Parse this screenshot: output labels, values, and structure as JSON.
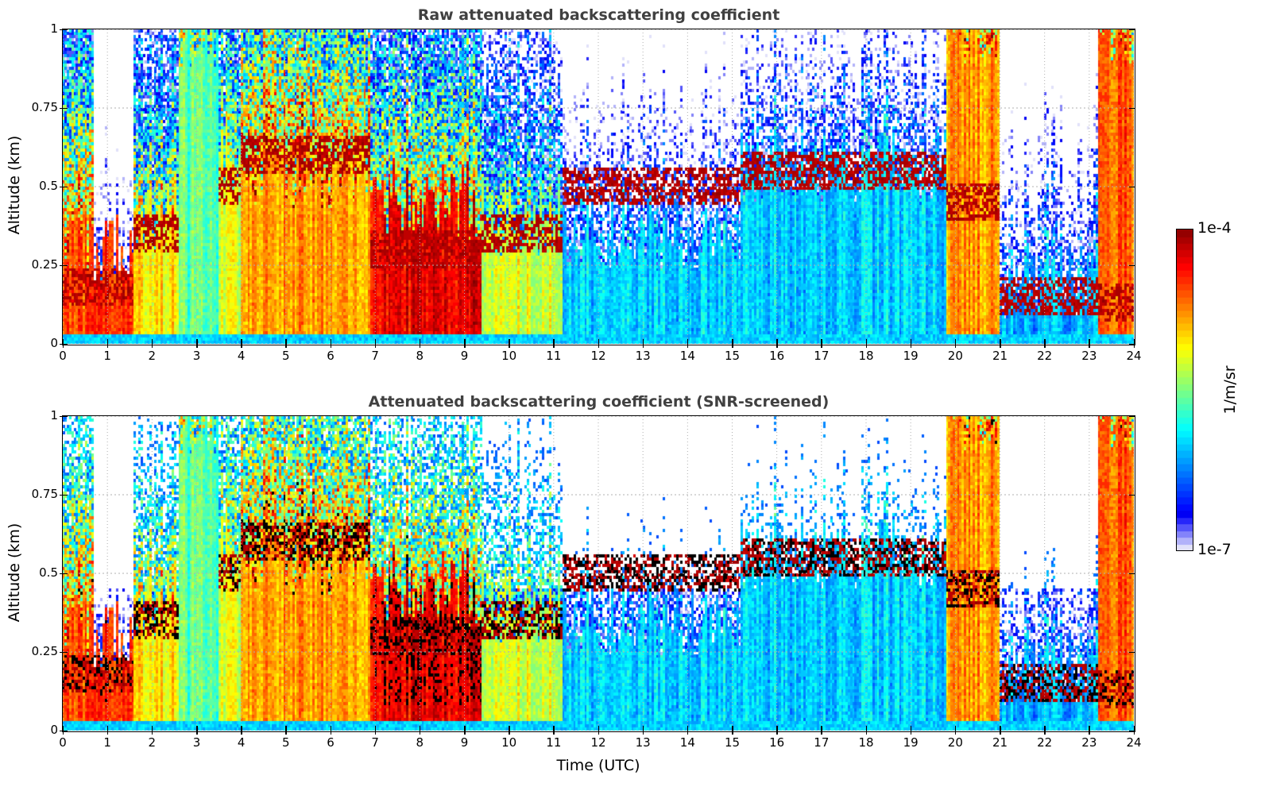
{
  "chart_data": [
    {
      "type": "heatmap",
      "title": "Raw attenuated backscattering coefficient",
      "xlabel": "",
      "ylabel": "Altitude (km)",
      "xlim": [
        0,
        24
      ],
      "ylim": [
        0,
        1
      ],
      "x_ticks": [
        "0",
        "1",
        "2",
        "3",
        "4",
        "5",
        "6",
        "7",
        "8",
        "9",
        "10",
        "11",
        "12",
        "13",
        "14",
        "15",
        "16",
        "17",
        "18",
        "19",
        "20",
        "21",
        "22",
        "23",
        "24"
      ],
      "y_ticks": [
        "0",
        "0.25",
        "0.5",
        "0.75",
        "1"
      ],
      "grid": true,
      "screened": false
    },
    {
      "type": "heatmap",
      "title": "Attenuated backscattering coefficient (SNR-screened)",
      "xlabel": "Time (UTC)",
      "ylabel": "Altitude (km)",
      "xlim": [
        0,
        24
      ],
      "ylim": [
        0,
        1
      ],
      "x_ticks": [
        "0",
        "1",
        "2",
        "3",
        "4",
        "5",
        "6",
        "7",
        "8",
        "9",
        "10",
        "11",
        "12",
        "13",
        "14",
        "15",
        "16",
        "17",
        "18",
        "19",
        "20",
        "21",
        "22",
        "23",
        "24"
      ],
      "y_ticks": [
        "0",
        "0.25",
        "0.5",
        "0.75",
        "1"
      ],
      "grid": true,
      "screened": true
    }
  ],
  "colorbar": {
    "min_label": "1e-7",
    "max_label": "1e-4",
    "units": "1/m/sr",
    "scale": "log",
    "range": [
      1e-07,
      0.0001
    ],
    "colormap": "jet-with-white-low",
    "levels": 48
  },
  "time_segments": [
    {
      "t0": 0.0,
      "t1": 0.7,
      "surface_log": -4.6,
      "top_km": 0.35,
      "cloud_km": 0.18,
      "upper_log": -5.0
    },
    {
      "t0": 0.7,
      "t1": 1.6,
      "surface_log": -4.5,
      "top_km": 0.3,
      "cloud_km": 0.18,
      "upper_log": -7.2
    },
    {
      "t0": 1.6,
      "t1": 2.6,
      "surface_log": -5.0,
      "top_km": 0.4,
      "cloud_km": 0.35,
      "upper_log": -5.3
    },
    {
      "t0": 2.6,
      "t1": 3.5,
      "surface_log": -5.6,
      "top_km": 1.0,
      "cloud_km": 0.0,
      "upper_log": -5.6
    },
    {
      "t0": 3.5,
      "t1": 4.0,
      "surface_log": -5.2,
      "top_km": 0.6,
      "cloud_km": 0.5,
      "upper_log": -5.4
    },
    {
      "t0": 4.0,
      "t1": 6.9,
      "surface_log": -4.8,
      "top_km": 0.55,
      "cloud_km": 0.6,
      "upper_log": -4.7
    },
    {
      "t0": 6.9,
      "t1": 9.4,
      "surface_log": -4.3,
      "top_km": 0.45,
      "cloud_km": 0.3,
      "upper_log": -5.2
    },
    {
      "t0": 9.4,
      "t1": 11.2,
      "surface_log": -5.2,
      "top_km": 0.4,
      "cloud_km": 0.35,
      "upper_log": -5.6
    },
    {
      "t0": 11.2,
      "t1": 15.2,
      "surface_log": -6.0,
      "top_km": 0.35,
      "cloud_km": 0.5,
      "upper_log": -6.6
    },
    {
      "t0": 15.2,
      "t1": 19.8,
      "surface_log": -6.0,
      "top_km": 0.55,
      "cloud_km": 0.55,
      "upper_log": -6.5
    },
    {
      "t0": 19.8,
      "t1": 21.0,
      "surface_log": -4.8,
      "top_km": 1.0,
      "cloud_km": 0.45,
      "upper_log": -4.8
    },
    {
      "t0": 21.0,
      "t1": 23.2,
      "surface_log": -6.1,
      "top_km": 0.2,
      "cloud_km": 0.15,
      "upper_log": -6.6
    },
    {
      "t0": 23.2,
      "t1": 24.0,
      "surface_log": -4.6,
      "top_km": 1.0,
      "cloud_km": 0.13,
      "upper_log": -4.8
    }
  ]
}
